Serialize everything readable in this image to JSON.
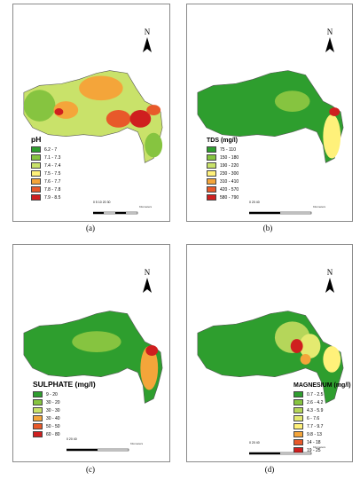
{
  "panels": [
    {
      "id": "a",
      "caption": "(a)",
      "north": "N",
      "legend_title": "pH",
      "legend": [
        {
          "label": "6.2 - 7",
          "color": "#2e9e2e"
        },
        {
          "label": "7.1 - 7.3",
          "color": "#86c440"
        },
        {
          "label": "7.4 - 7.4",
          "color": "#c9e26a"
        },
        {
          "label": "7.5 - 7.5",
          "color": "#fff17a"
        },
        {
          "label": "7.6 - 7.7",
          "color": "#f4a53a"
        },
        {
          "label": "7.8 - 7.8",
          "color": "#e8592a"
        },
        {
          "label": "7.9 - 8.5",
          "color": "#cf1f1f"
        }
      ],
      "scale_ticks": "0  5  10     20     30",
      "scale_unit": "Kilometers"
    },
    {
      "id": "b",
      "caption": "(b)",
      "north": "N",
      "legend_title": "TDS (mg/l)",
      "legend": [
        {
          "label": "75 - 110",
          "color": "#2e9e2e"
        },
        {
          "label": "150 - 180",
          "color": "#86c440"
        },
        {
          "label": "190 - 220",
          "color": "#c9e26a"
        },
        {
          "label": "230 - 300",
          "color": "#fff17a"
        },
        {
          "label": "310 - 410",
          "color": "#f4a53a"
        },
        {
          "label": "420 - 570",
          "color": "#e8592a"
        },
        {
          "label": "580 - 790",
          "color": "#cf1f1f"
        }
      ],
      "scale_ticks": "0      20      40",
      "scale_unit": "Kilometers"
    },
    {
      "id": "c",
      "caption": "(c)",
      "north": "N",
      "legend_title": "SULPHATE (mg/l)",
      "legend": [
        {
          "label": "9 - 20",
          "color": "#2e9e2e"
        },
        {
          "label": "30 - 20",
          "color": "#86c440"
        },
        {
          "label": "30 - 30",
          "color": "#c9e26a"
        },
        {
          "label": "30 - 40",
          "color": "#f4a53a"
        },
        {
          "label": "50 - 50",
          "color": "#e8592a"
        },
        {
          "label": "60 - 80",
          "color": "#cf1f1f"
        }
      ],
      "scale_ticks": "0      20      40",
      "scale_unit": "Kilometers"
    },
    {
      "id": "d",
      "caption": "(d)",
      "north": "N",
      "legend_title": "MAGNESIUM (mg/l)",
      "legend": [
        {
          "label": "0.7 - 2.5",
          "color": "#2e9e2e"
        },
        {
          "label": "2.6 - 4.2",
          "color": "#86c440"
        },
        {
          "label": "4.3 - 5.9",
          "color": "#b5d65a"
        },
        {
          "label": "6 - 7.6",
          "color": "#e4ea70"
        },
        {
          "label": "7.7 - 9.7",
          "color": "#fff17a"
        },
        {
          "label": "9.8 - 13",
          "color": "#f4a53a"
        },
        {
          "label": "14 - 18",
          "color": "#e8592a"
        },
        {
          "label": "19 - 25",
          "color": "#cf1f1f"
        }
      ],
      "scale_ticks": "0       20       40",
      "scale_unit": "Kilometers"
    }
  ]
}
